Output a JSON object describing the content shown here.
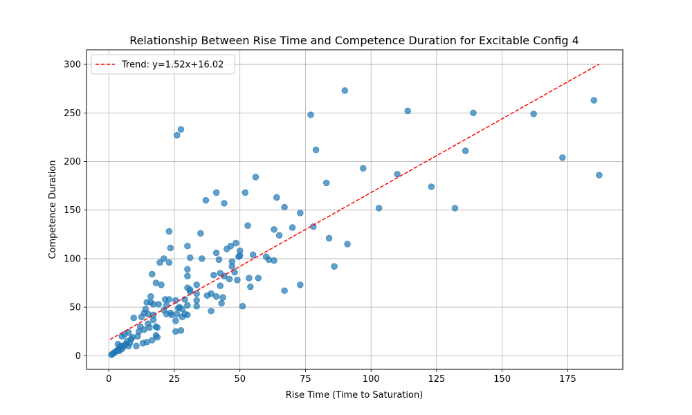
{
  "chart_data": {
    "type": "scatter",
    "title": "Relationship Between Rise Time and Competence Duration for Excitable Config 4",
    "xlabel": "Rise Time (Time to Saturation)",
    "ylabel": "Competence Duration",
    "xlim": [
      -8.5,
      196
    ],
    "ylim": [
      -14,
      315
    ],
    "xticks": [
      0,
      25,
      50,
      75,
      100,
      125,
      150,
      175
    ],
    "xtick_labels": [
      "0",
      "25",
      "50",
      "75",
      "100",
      "125",
      "150",
      "175"
    ],
    "yticks": [
      0,
      50,
      100,
      150,
      200,
      250,
      300
    ],
    "ytick_labels": [
      "0",
      "50",
      "100",
      "150",
      "200",
      "250",
      "300"
    ],
    "grid": true,
    "legend_position": "top-left",
    "colors": {
      "points": "#1f77b4",
      "trend": "#ff0000"
    },
    "trend": {
      "label": "Trend: y=1.52x+16.02",
      "slope": 1.52,
      "intercept": 16.02,
      "x_start": 0.5,
      "x_end": 187
    },
    "points": [
      [
        1,
        1
      ],
      [
        1.5,
        2
      ],
      [
        2,
        3
      ],
      [
        2.5,
        4
      ],
      [
        3,
        5
      ],
      [
        3.5,
        6
      ],
      [
        4,
        5
      ],
      [
        4,
        8
      ],
      [
        3.5,
        12
      ],
      [
        4.5,
        10
      ],
      [
        5,
        7
      ],
      [
        5.5,
        9
      ],
      [
        6,
        11
      ],
      [
        6.5,
        12
      ],
      [
        7,
        15
      ],
      [
        7.5,
        10
      ],
      [
        8,
        13
      ],
      [
        8.5,
        17
      ],
      [
        9,
        19
      ],
      [
        5,
        20
      ],
      [
        6,
        22
      ],
      [
        7.5,
        24
      ],
      [
        9.5,
        39
      ],
      [
        10.5,
        10
      ],
      [
        11,
        20
      ],
      [
        11.5,
        25
      ],
      [
        12,
        30
      ],
      [
        12.5,
        40
      ],
      [
        13,
        13
      ],
      [
        13.5,
        27
      ],
      [
        13.5,
        44
      ],
      [
        14,
        48
      ],
      [
        14.5,
        55
      ],
      [
        14.5,
        14
      ],
      [
        15,
        33
      ],
      [
        15.5,
        29
      ],
      [
        15,
        43
      ],
      [
        16,
        55
      ],
      [
        16,
        61
      ],
      [
        16.5,
        84
      ],
      [
        16.5,
        16
      ],
      [
        17,
        42
      ],
      [
        17,
        53
      ],
      [
        17,
        37
      ],
      [
        18,
        30
      ],
      [
        18,
        75
      ],
      [
        18,
        21
      ],
      [
        18.5,
        29
      ],
      [
        18.5,
        19
      ],
      [
        19.5,
        96
      ],
      [
        19,
        53
      ],
      [
        20,
        73
      ],
      [
        21,
        100
      ],
      [
        21,
        47
      ],
      [
        21.5,
        58
      ],
      [
        22,
        52
      ],
      [
        22,
        43
      ],
      [
        23,
        128
      ],
      [
        23,
        96
      ],
      [
        23.5,
        111
      ],
      [
        23,
        58
      ],
      [
        23.5,
        44
      ],
      [
        24,
        42
      ],
      [
        25.5,
        57
      ],
      [
        25.5,
        36
      ],
      [
        26,
        227
      ],
      [
        25.5,
        25
      ],
      [
        26,
        43
      ],
      [
        26.5,
        49
      ],
      [
        27,
        50
      ],
      [
        27.5,
        233
      ],
      [
        27.5,
        26
      ],
      [
        28,
        48
      ],
      [
        28,
        40
      ],
      [
        29,
        58
      ],
      [
        29,
        43
      ],
      [
        30,
        113
      ],
      [
        30,
        89
      ],
      [
        30,
        82
      ],
      [
        30,
        70
      ],
      [
        30,
        52
      ],
      [
        30,
        42
      ],
      [
        31,
        101
      ],
      [
        31,
        68
      ],
      [
        31,
        66
      ],
      [
        33.5,
        73
      ],
      [
        33.5,
        64
      ],
      [
        33.5,
        57
      ],
      [
        33.5,
        51
      ],
      [
        35,
        126
      ],
      [
        35.5,
        100
      ],
      [
        37,
        160
      ],
      [
        37.5,
        62
      ],
      [
        39,
        64
      ],
      [
        39,
        46
      ],
      [
        40,
        83
      ],
      [
        41,
        168
      ],
      [
        41,
        106
      ],
      [
        41,
        61
      ],
      [
        42,
        99
      ],
      [
        42.5,
        85
      ],
      [
        42.5,
        72
      ],
      [
        43,
        54
      ],
      [
        43.5,
        60
      ],
      [
        44,
        157
      ],
      [
        44,
        82
      ],
      [
        45,
        110
      ],
      [
        46,
        79
      ],
      [
        46.5,
        113
      ],
      [
        47,
        92
      ],
      [
        47,
        97
      ],
      [
        48,
        86
      ],
      [
        48.5,
        116
      ],
      [
        49,
        78
      ],
      [
        49.5,
        102
      ],
      [
        50,
        108
      ],
      [
        50,
        103
      ],
      [
        51,
        51
      ],
      [
        52,
        168
      ],
      [
        53,
        134
      ],
      [
        53.5,
        80
      ],
      [
        54,
        71
      ],
      [
        55,
        104
      ],
      [
        56,
        184
      ],
      [
        57,
        80
      ],
      [
        60,
        102
      ],
      [
        61,
        99
      ],
      [
        63,
        130
      ],
      [
        63,
        98
      ],
      [
        64,
        163
      ],
      [
        65,
        124
      ],
      [
        67,
        153
      ],
      [
        67,
        67
      ],
      [
        70,
        132
      ],
      [
        73,
        147
      ],
      [
        73,
        73
      ],
      [
        77,
        248
      ],
      [
        78,
        133
      ],
      [
        79,
        212
      ],
      [
        83,
        178
      ],
      [
        84,
        121
      ],
      [
        86,
        92
      ],
      [
        90,
        273
      ],
      [
        91,
        115
      ],
      [
        97,
        193
      ],
      [
        103,
        152
      ],
      [
        110,
        187
      ],
      [
        114,
        252
      ],
      [
        123,
        174
      ],
      [
        132,
        152
      ],
      [
        136,
        211
      ],
      [
        139,
        250
      ],
      [
        162,
        249
      ],
      [
        173,
        204
      ],
      [
        185,
        263
      ],
      [
        187,
        186
      ]
    ]
  }
}
